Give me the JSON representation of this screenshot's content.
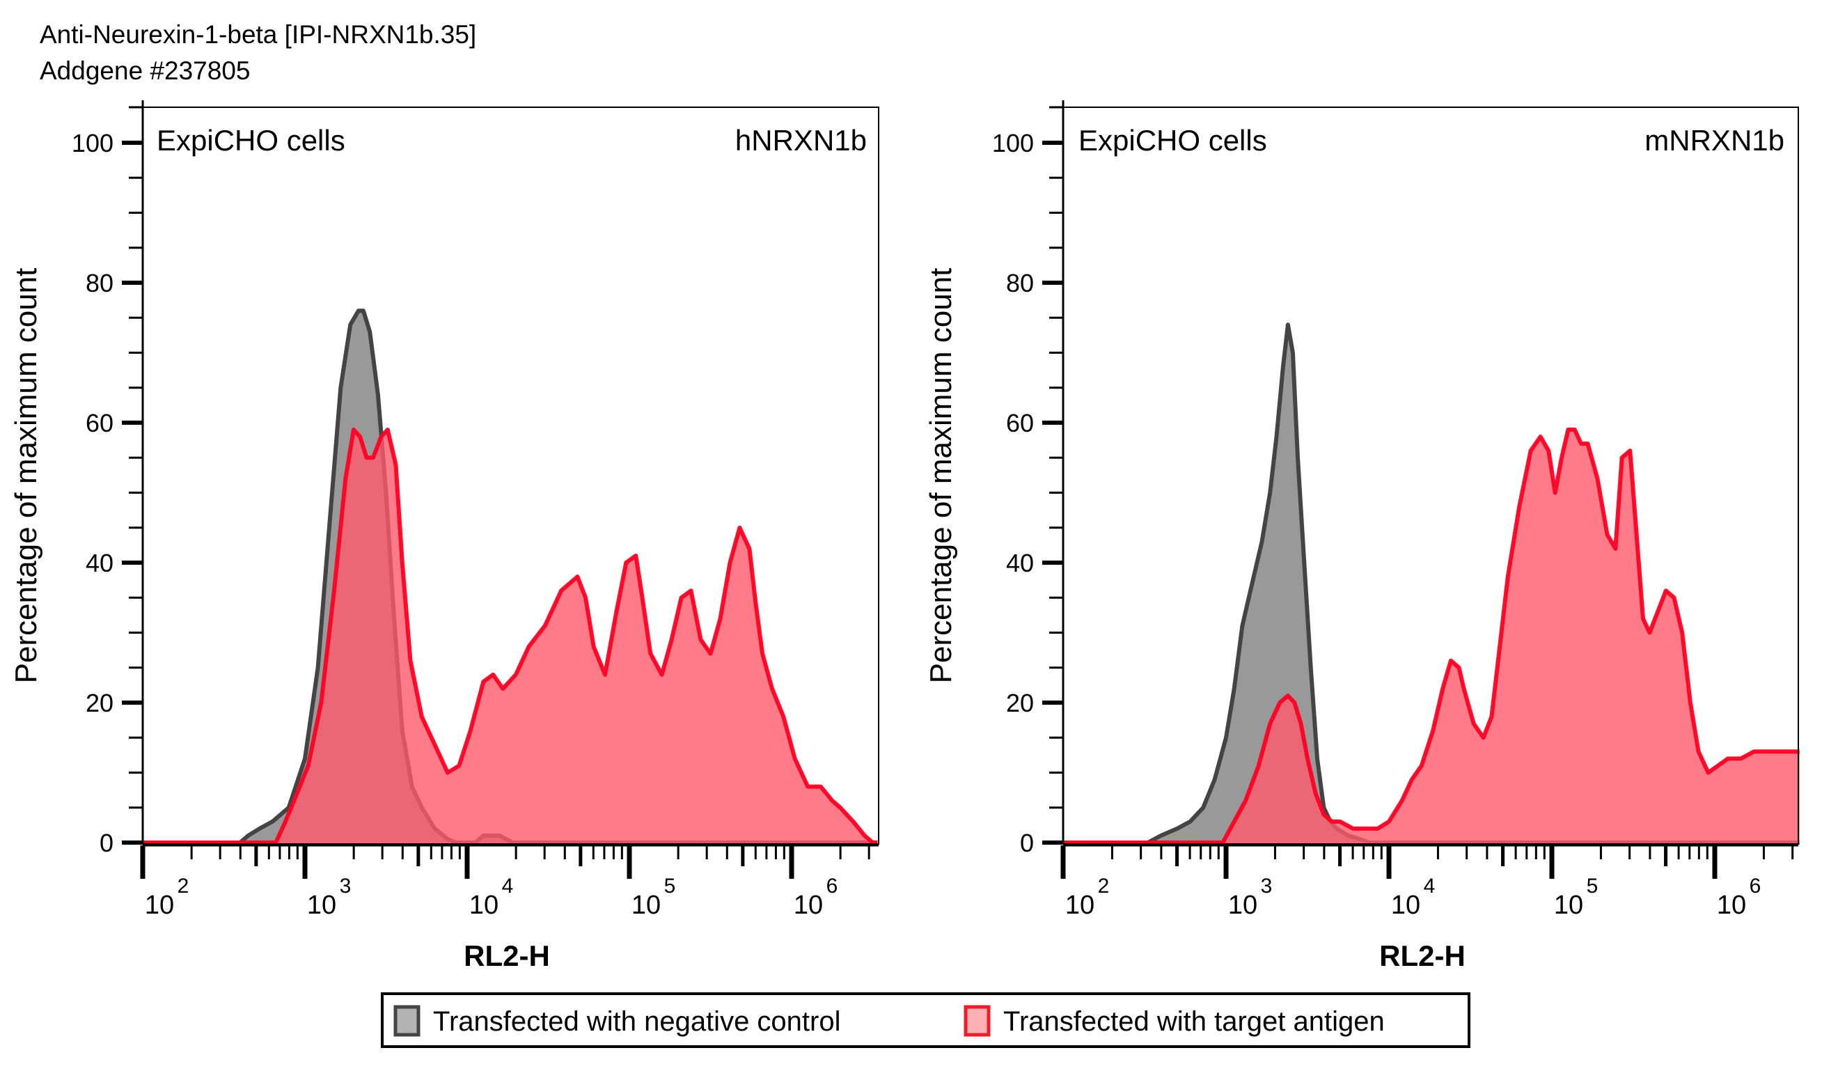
{
  "title": {
    "line1": "Anti-Neurexin-1-beta [IPI-NRXN1b.35]",
    "line2": "Addgene #237805"
  },
  "legend": {
    "items": [
      {
        "label": "Transfected with negative control",
        "fill": "#999999",
        "stroke": "#444444"
      },
      {
        "label": "Transfected with target antigen",
        "fill": "#FF7A86",
        "stroke": "#FF0022"
      }
    ]
  },
  "colors": {
    "control_fill": "#999999",
    "control_stroke": "#444444",
    "antigen_fill": "#FF5A6B",
    "antigen_fill_opacity": 0.8,
    "antigen_stroke": "#FF0022"
  },
  "chart_data": [
    {
      "type": "area",
      "title": "",
      "cell_label": "ExpiCHO cells",
      "target_label": "hNRXN1b",
      "xlabel": "RL2-H",
      "ylabel": "Percentage of maximum count",
      "xscale": "log",
      "xlim_log10": [
        2,
        6.53
      ],
      "ylim": [
        0,
        105
      ],
      "yticks": [
        0,
        20,
        40,
        60,
        80,
        100
      ],
      "xticks": [
        {
          "base": "10",
          "exp": "2",
          "log10": 2
        },
        {
          "base": "10",
          "exp": "3",
          "log10": 3
        },
        {
          "base": "10",
          "exp": "4",
          "log10": 4
        },
        {
          "base": "10",
          "exp": "5",
          "log10": 5
        },
        {
          "base": "10",
          "exp": "6",
          "log10": 6
        }
      ],
      "grid": false,
      "series": [
        {
          "name": "Transfected with negative control",
          "x_log10": [
            2.0,
            2.6,
            2.65,
            2.72,
            2.8,
            2.9,
            3.0,
            3.08,
            3.15,
            3.22,
            3.28,
            3.33,
            3.36,
            3.4,
            3.45,
            3.5,
            3.55,
            3.6,
            3.66,
            3.72,
            3.8,
            3.88,
            3.93,
            4.05,
            4.1,
            4.2,
            4.28,
            4.35,
            6.53
          ],
          "y": [
            0,
            0,
            1,
            2,
            3,
            5,
            12,
            25,
            45,
            65,
            74,
            76,
            76,
            73,
            64,
            50,
            32,
            16,
            8,
            5,
            2,
            0.5,
            0,
            0,
            1,
            1,
            0,
            0,
            0
          ]
        },
        {
          "name": "Transfected with target antigen",
          "x_log10": [
            2.0,
            2.82,
            2.88,
            2.95,
            3.02,
            3.1,
            3.18,
            3.25,
            3.3,
            3.34,
            3.38,
            3.42,
            3.47,
            3.51,
            3.56,
            3.6,
            3.65,
            3.72,
            3.8,
            3.88,
            3.95,
            4.02,
            4.1,
            4.16,
            4.22,
            4.3,
            4.38,
            4.48,
            4.58,
            4.68,
            4.73,
            4.78,
            4.85,
            4.92,
            4.98,
            5.04,
            5.08,
            5.13,
            5.2,
            5.26,
            5.32,
            5.38,
            5.44,
            5.5,
            5.56,
            5.62,
            5.68,
            5.74,
            5.78,
            5.82,
            5.88,
            5.95,
            6.02,
            6.1,
            6.18,
            6.25,
            6.3,
            6.38,
            6.45,
            6.5,
            6.53
          ],
          "y": [
            0,
            0,
            3,
            7,
            11,
            20,
            36,
            52,
            59,
            58,
            55,
            55,
            58,
            59,
            54,
            40,
            26,
            18,
            14,
            10,
            11,
            16,
            23,
            24,
            22,
            24,
            28,
            31,
            36,
            38,
            35,
            28,
            24,
            33,
            40,
            41,
            35,
            27,
            24,
            29,
            35,
            36,
            29,
            27,
            32,
            40,
            45,
            42,
            34,
            27,
            22,
            18,
            12,
            8,
            8,
            6,
            5,
            3,
            1,
            0,
            0
          ]
        }
      ]
    },
    {
      "type": "area",
      "title": "",
      "cell_label": "ExpiCHO cells",
      "target_label": "mNRXN1b",
      "xlabel": "RL2-H",
      "ylabel": "Percentage of maximum count",
      "xscale": "log",
      "xlim_log10": [
        2,
        6.52
      ],
      "ylim": [
        0,
        105
      ],
      "yticks": [
        0,
        20,
        40,
        60,
        80,
        100
      ],
      "xticks": [
        {
          "base": "10",
          "exp": "2",
          "log10": 2
        },
        {
          "base": "10",
          "exp": "3",
          "log10": 3
        },
        {
          "base": "10",
          "exp": "4",
          "log10": 4
        },
        {
          "base": "10",
          "exp": "5",
          "log10": 5
        },
        {
          "base": "10",
          "exp": "6",
          "log10": 6
        }
      ],
      "grid": false,
      "series": [
        {
          "name": "Transfected with negative control",
          "x_log10": [
            2.0,
            2.52,
            2.6,
            2.7,
            2.78,
            2.86,
            2.93,
            3.0,
            3.05,
            3.1,
            3.16,
            3.22,
            3.27,
            3.31,
            3.35,
            3.38,
            3.41,
            3.44,
            3.48,
            3.52,
            3.56,
            3.6,
            3.64,
            3.68,
            3.75,
            3.82,
            3.88,
            6.52
          ],
          "y": [
            0,
            0,
            1,
            2,
            3,
            5,
            9,
            15,
            22,
            31,
            37,
            43,
            50,
            58,
            68,
            74,
            70,
            55,
            40,
            25,
            12,
            5,
            3,
            2,
            1,
            0.5,
            0,
            0
          ]
        },
        {
          "name": "Transfected with target antigen",
          "x_log10": [
            2.0,
            2.98,
            3.05,
            3.12,
            3.2,
            3.27,
            3.33,
            3.38,
            3.42,
            3.46,
            3.5,
            3.55,
            3.6,
            3.65,
            3.7,
            3.78,
            3.86,
            3.93,
            4.0,
            4.08,
            4.14,
            4.2,
            4.27,
            4.33,
            4.38,
            4.43,
            4.46,
            4.52,
            4.58,
            4.63,
            4.67,
            4.73,
            4.8,
            4.87,
            4.93,
            4.98,
            5.02,
            5.06,
            5.1,
            5.14,
            5.18,
            5.22,
            5.28,
            5.34,
            5.39,
            5.43,
            5.48,
            5.52,
            5.56,
            5.6,
            5.65,
            5.7,
            5.75,
            5.8,
            5.85,
            5.9,
            5.96,
            6.02,
            6.08,
            6.16,
            6.24,
            6.32,
            6.4,
            6.46,
            6.52
          ],
          "y": [
            0,
            0,
            3,
            6,
            11,
            17,
            20,
            21,
            20,
            17,
            12,
            7,
            4,
            3,
            3,
            2,
            2,
            2,
            3,
            6,
            9,
            11,
            16,
            22,
            26,
            25,
            22,
            17,
            15,
            18,
            26,
            38,
            48,
            56,
            58,
            56,
            50,
            55,
            59,
            59,
            57,
            57,
            52,
            44,
            42,
            55,
            56,
            44,
            32,
            30,
            33,
            36,
            35,
            30,
            20,
            13,
            10,
            11,
            12,
            12,
            13,
            13,
            13,
            13,
            13
          ]
        }
      ]
    }
  ]
}
